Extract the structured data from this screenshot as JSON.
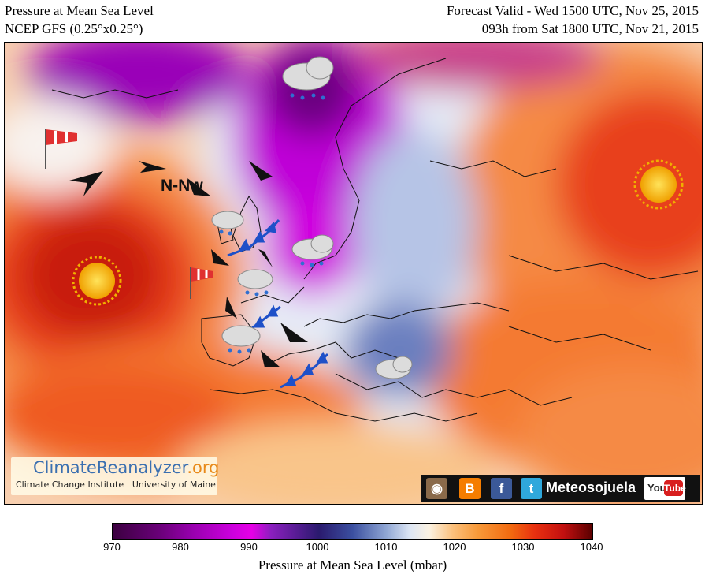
{
  "header": {
    "title_left_1": "Pressure at Mean Sea Level",
    "title_left_2": "NCEP GFS (0.25°x0.25°)",
    "title_right_1": "Forecast Valid - Wed 1500 UTC, Nov 25, 2015",
    "title_right_2": "093h from Sat 1800 UTC, Nov 21, 2015"
  },
  "map": {
    "wind_label": "N-Nw",
    "symbols": [
      "sun-icon",
      "sun-icon",
      "rain-cloud-icon",
      "rain-cloud-icon",
      "rain-cloud-icon",
      "rain-cloud-icon",
      "rain-cloud-icon",
      "rain-cloud-icon",
      "windsock-icon",
      "windsock-icon",
      "cold-front",
      "wind-arrow"
    ]
  },
  "branding": {
    "name_part1": "ClimateReanalyzer",
    "name_part2": ".org",
    "credit": "Climate Change Institute | University of Maine"
  },
  "social": {
    "account": "Meteosojuela",
    "youtube_you": "You",
    "youtube_tube": "Tube"
  },
  "colorbar": {
    "ticks": [
      "970",
      "980",
      "990",
      "1000",
      "1010",
      "1020",
      "1030",
      "1040"
    ],
    "label": "Pressure at Mean Sea Level (mbar)",
    "min": 970,
    "max": 1040
  },
  "colors": {
    "high_pressure": "#e8401a",
    "low_pressure": "#a000c0",
    "front": "#1e50c8"
  }
}
